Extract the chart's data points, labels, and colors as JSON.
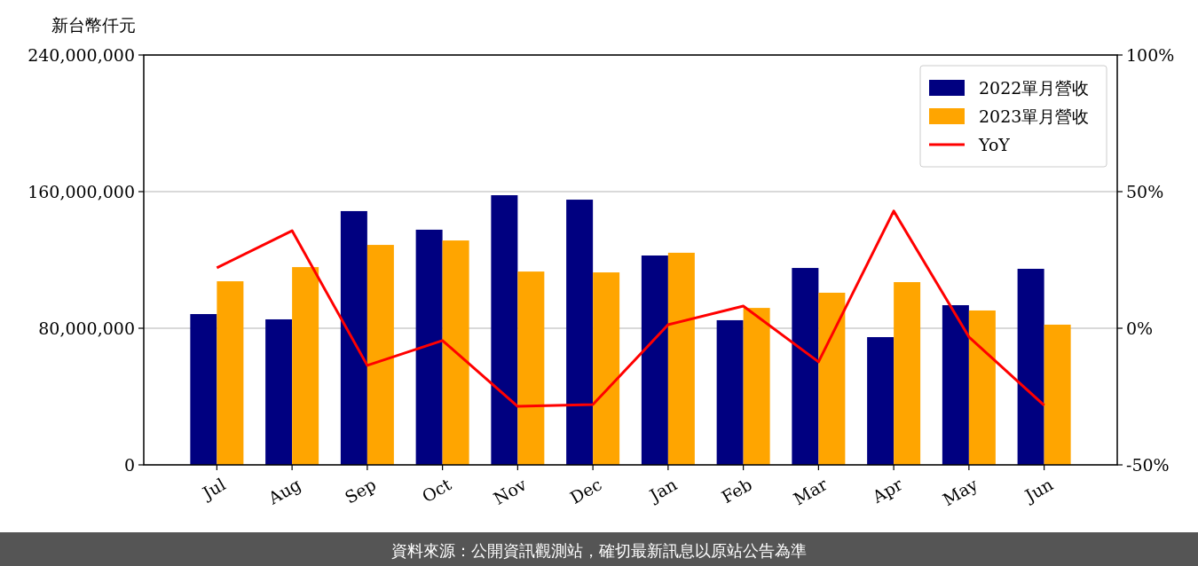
{
  "chart_data": {
    "type": "bar",
    "ylabel": "新台幣仟元",
    "categories": [
      "Jul",
      "Aug",
      "Sep",
      "Oct",
      "Nov",
      "Dec",
      "Jan",
      "Feb",
      "Mar",
      "Apr",
      "May",
      "Jun"
    ],
    "series": [
      {
        "name": "2022單月營收",
        "color": "#000080",
        "values": [
          88300000,
          85200000,
          148600000,
          137700000,
          157900000,
          155300000,
          122600000,
          84700000,
          115300000,
          74800000,
          93500000,
          114800000
        ]
      },
      {
        "name": "2023單月營收",
        "color": "#ffa500",
        "values": [
          107500000,
          115800000,
          128800000,
          131400000,
          113200000,
          112700000,
          124200000,
          91900000,
          100800000,
          107000000,
          90400000,
          82100000
        ]
      },
      {
        "name": "YoY",
        "type": "line",
        "axis": "y2",
        "color": "#ff0000",
        "values": [
          22.1,
          35.7,
          -13.6,
          -4.5,
          -28.6,
          -27.9,
          1.3,
          8.1,
          -12.3,
          42.9,
          -3.2,
          -28.2
        ]
      }
    ],
    "ylim": [
      0,
      240000000
    ],
    "yticks": [
      {
        "value": 0,
        "label": "0"
      },
      {
        "value": 80000000,
        "label": "80,000,000"
      },
      {
        "value": 160000000,
        "label": "160,000,000"
      },
      {
        "value": 240000000,
        "label": "240,000,000"
      }
    ],
    "y2lim": [
      -50,
      100
    ],
    "y2ticks": [
      {
        "value": -50,
        "label": "-50%"
      },
      {
        "value": 0,
        "label": "0%"
      },
      {
        "value": 50,
        "label": "50%"
      },
      {
        "value": 100,
        "label": "100%"
      }
    ],
    "grid": "y",
    "legend": "top right",
    "annotations": [
      "資料來源：公開資訊觀測站，確切最新訊息以原站公告為準"
    ]
  }
}
